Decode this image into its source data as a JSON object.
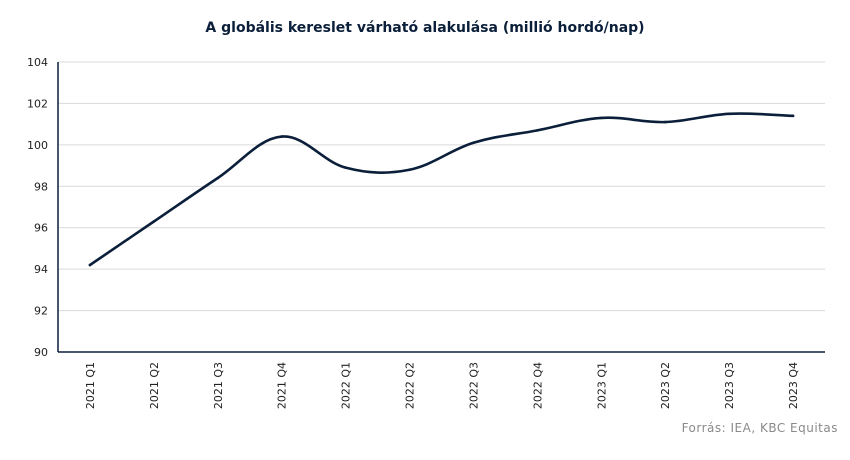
{
  "chart_data": {
    "type": "line",
    "title": "A globális kereslet várható alakulása (millió hordó/nap)",
    "xlabel": "",
    "ylabel": "",
    "categories": [
      "2021 Q1",
      "2021 Q2",
      "2021 Q3",
      "2021 Q4",
      "2022 Q1",
      "2022 Q2",
      "2022 Q3",
      "2022 Q4",
      "2023 Q1",
      "2023 Q2",
      "2023 Q3",
      "2023 Q4"
    ],
    "series": [
      {
        "values": [
          94.2,
          96.3,
          98.4,
          100.4,
          98.9,
          98.8,
          100.1,
          100.7,
          101.3,
          101.1,
          101.5,
          101.4
        ]
      }
    ],
    "ylim": [
      90,
      104
    ],
    "yticks": [
      "90",
      "92",
      "94",
      "96",
      "98",
      "100",
      "102",
      "104"
    ],
    "grid": true,
    "legend": "none",
    "colors": {
      "line": "#0b1f3a",
      "grid": "#d9d9d9",
      "axis": "#0b1f3a"
    }
  },
  "source_text": "Forrás: IEA, KBC Equitas"
}
